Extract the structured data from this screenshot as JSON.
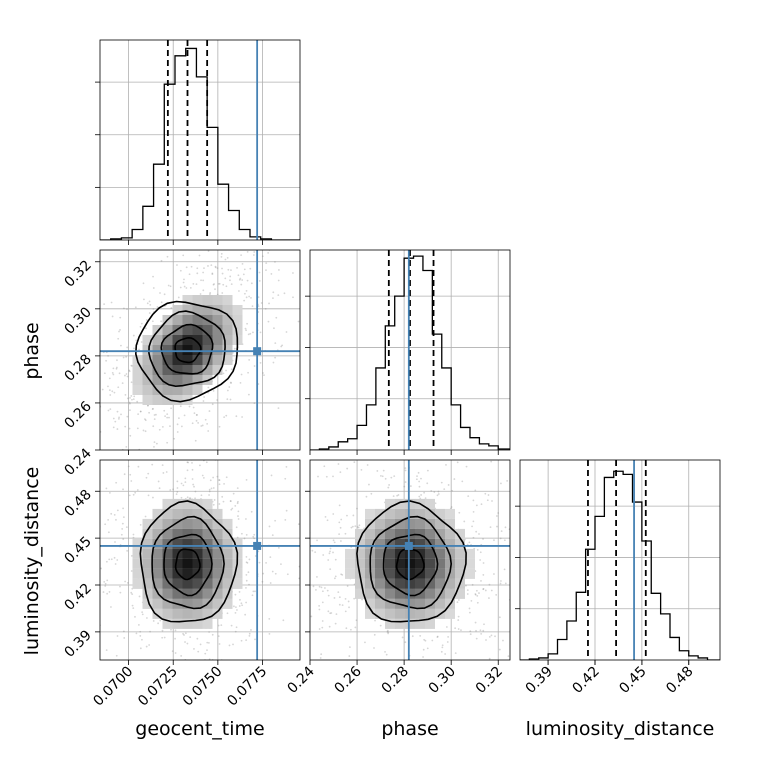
{
  "chart_data": {
    "type": "corner",
    "parameters": [
      "geocent_time",
      "phase",
      "luminosity_distance"
    ],
    "truth_color": "#4682b4",
    "axes": {
      "geocent_time": {
        "label": "geocent_time",
        "range": [
          0.0684,
          0.0796
        ],
        "ticks": [
          0.07,
          0.0725,
          0.075,
          0.0775
        ],
        "tick_labels": [
          "0.0700",
          "0.0725",
          "0.0750",
          "0.0775"
        ],
        "truth": 0.0772,
        "quantiles": [
          0.0722,
          0.0733,
          0.0744
        ]
      },
      "phase": {
        "label": "phase",
        "range": [
          0.24,
          0.325
        ],
        "ticks": [
          0.24,
          0.26,
          0.28,
          0.3,
          0.32
        ],
        "tick_labels": [
          "0.24",
          "0.26",
          "0.28",
          "0.30",
          "0.32"
        ],
        "truth": 0.282,
        "quantiles": [
          0.2735,
          0.2825,
          0.2925
        ]
      },
      "luminosity_distance": {
        "label": "luminosity_distance",
        "range": [
          0.372,
          0.5
        ],
        "ticks": [
          0.39,
          0.42,
          0.45,
          0.48
        ],
        "tick_labels": [
          "0.39",
          "0.42",
          "0.45",
          "0.48"
        ],
        "truth": 0.445,
        "quantiles": [
          0.4155,
          0.4335,
          0.4525
        ]
      }
    },
    "histograms": {
      "geocent_time": {
        "bin_edges": [
          0.0684,
          0.069,
          0.0696,
          0.0702,
          0.0708,
          0.0714,
          0.072,
          0.0726,
          0.0732,
          0.0738,
          0.0744,
          0.075,
          0.0756,
          0.0762,
          0.0768,
          0.0774,
          0.078,
          0.0786,
          0.0796
        ],
        "counts": [
          0,
          1,
          2,
          10,
          32,
          72,
          148,
          175,
          182,
          155,
          107,
          53,
          28,
          10,
          3,
          1,
          0,
          0
        ],
        "ylim": [
          0,
          190
        ],
        "yticks": [
          50,
          100,
          150
        ]
      },
      "phase": {
        "bin_edges": [
          0.24,
          0.244,
          0.248,
          0.252,
          0.256,
          0.26,
          0.264,
          0.268,
          0.272,
          0.276,
          0.28,
          0.284,
          0.288,
          0.292,
          0.296,
          0.3,
          0.304,
          0.308,
          0.312,
          0.316,
          0.32,
          0.325
        ],
        "counts": [
          0,
          1,
          3,
          8,
          11,
          24,
          44,
          80,
          121,
          150,
          187,
          189,
          175,
          113,
          80,
          44,
          22,
          12,
          6,
          4,
          1
        ],
        "ylim": [
          0,
          195
        ],
        "yticks": [
          50,
          100,
          150
        ]
      },
      "luminosity_distance": {
        "bin_edges": [
          0.372,
          0.378,
          0.384,
          0.39,
          0.396,
          0.402,
          0.408,
          0.414,
          0.42,
          0.426,
          0.432,
          0.438,
          0.444,
          0.45,
          0.456,
          0.462,
          0.468,
          0.474,
          0.48,
          0.486,
          0.492,
          0.5
        ],
        "counts": [
          0,
          1,
          2,
          6,
          20,
          38,
          66,
          108,
          140,
          178,
          184,
          181,
          154,
          116,
          65,
          45,
          22,
          9,
          4,
          2,
          0
        ],
        "ylim": [
          0,
          195
        ],
        "yticks": [
          50,
          100,
          150
        ]
      }
    },
    "joint": {
      "phase_vs_geocent_time": {
        "center": [
          0.0733,
          0.2825
        ],
        "contour_levels": [
          "0.5",
          "1.0",
          "1.5",
          "2.0"
        ]
      },
      "luminosity_distance_vs_geocent_time": {
        "center": [
          0.0733,
          0.4335
        ],
        "contour_levels": [
          "0.5",
          "1.0",
          "1.5",
          "2.0"
        ]
      },
      "luminosity_distance_vs_phase": {
        "center": [
          0.2825,
          0.4335
        ],
        "contour_levels": [
          "0.5",
          "1.0",
          "1.5",
          "2.0"
        ]
      }
    },
    "grid": true
  }
}
